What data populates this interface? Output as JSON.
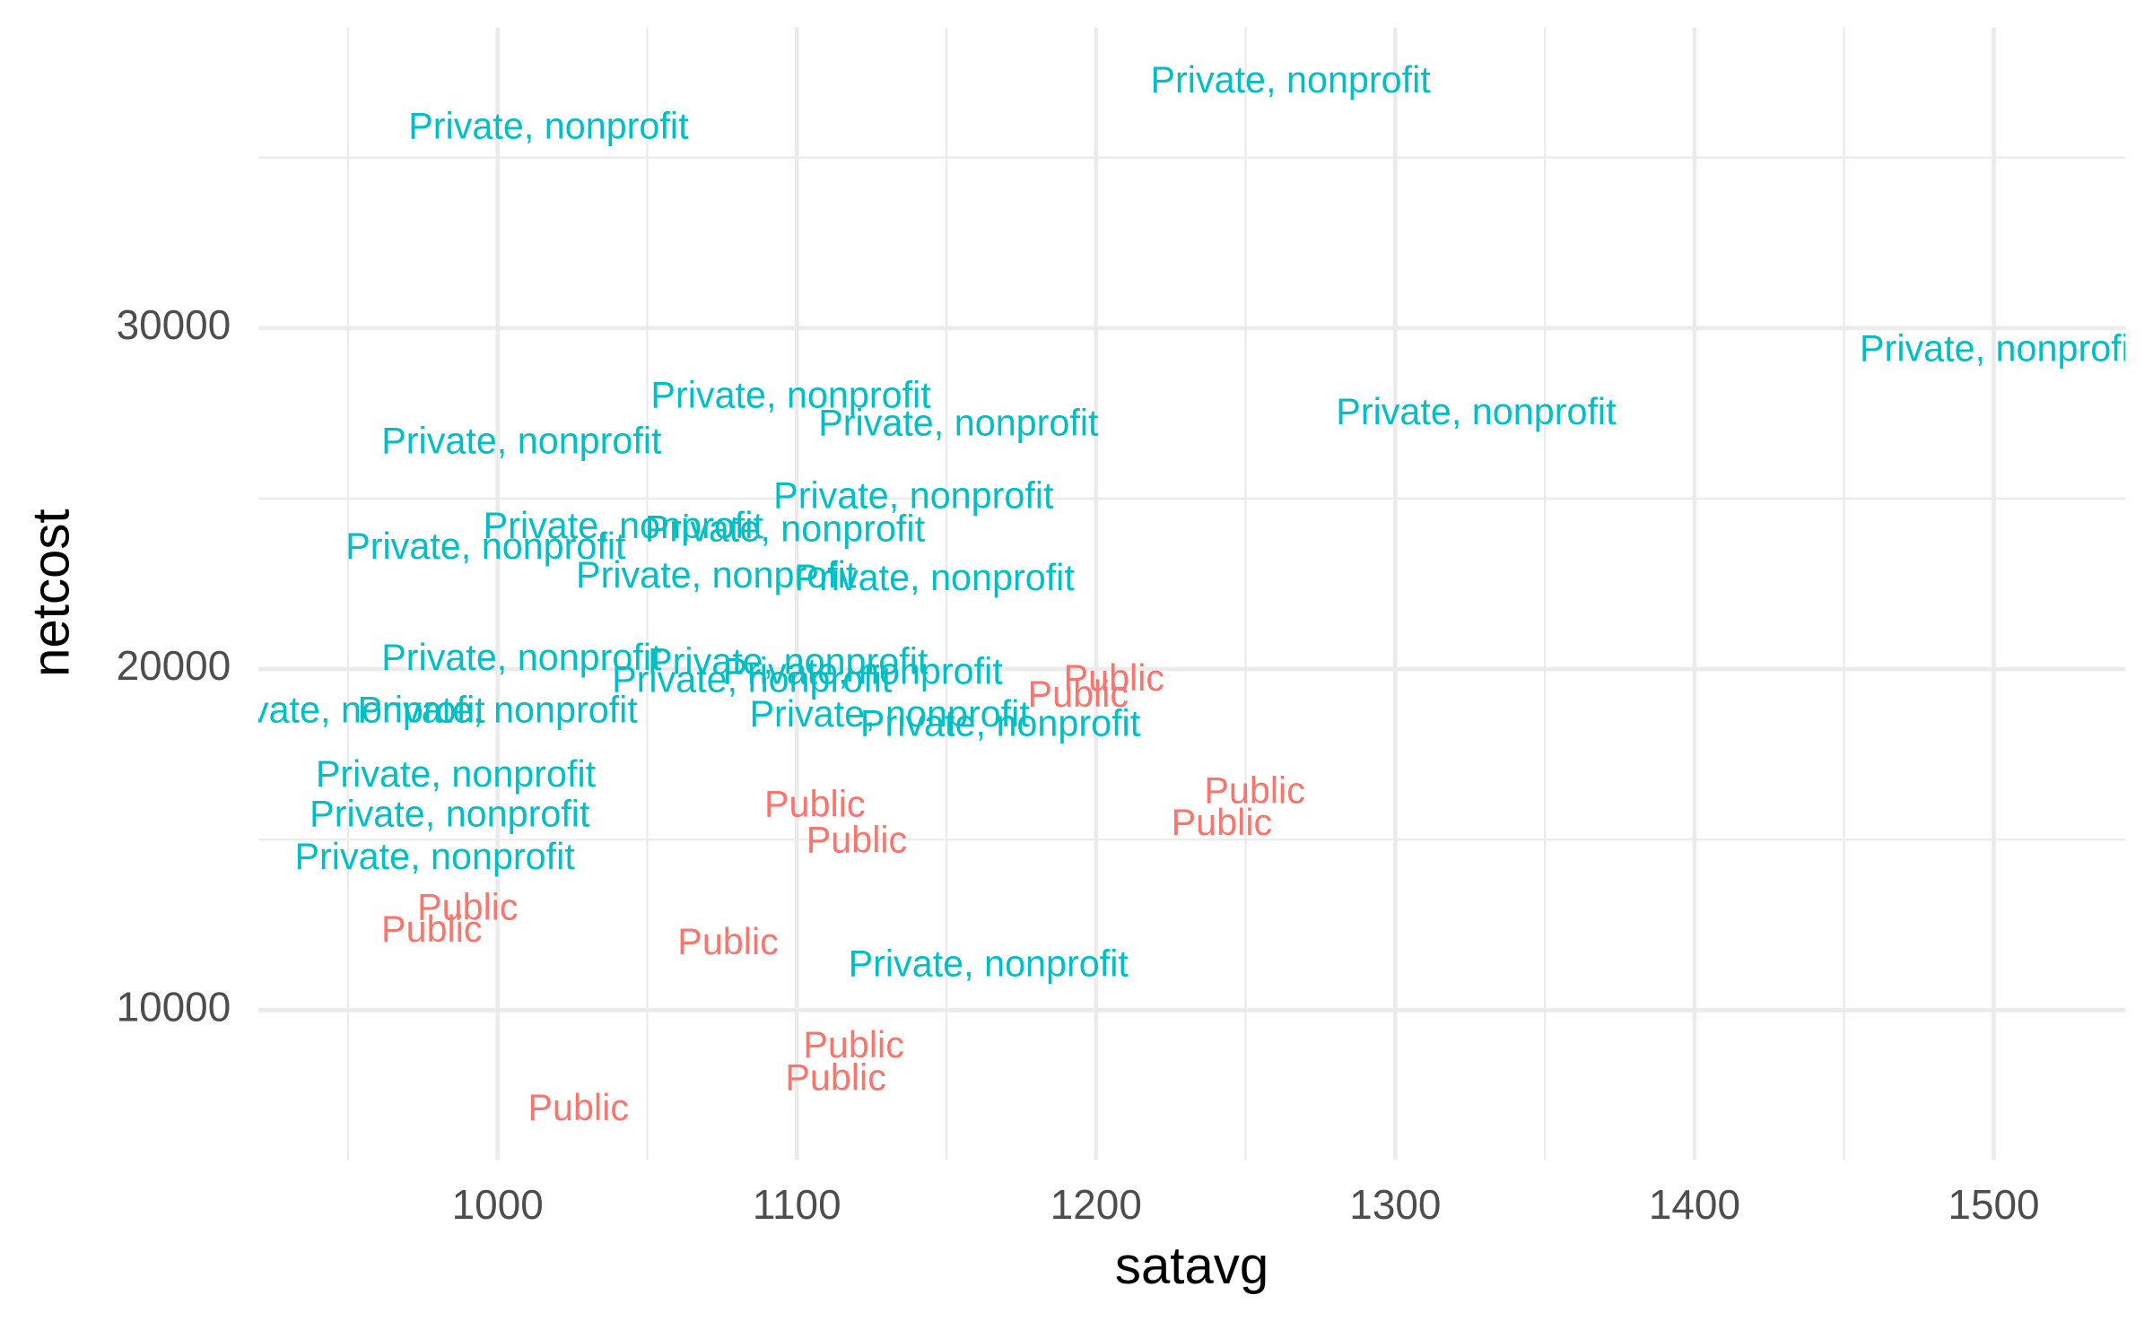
{
  "chart_data": {
    "type": "text-scatter",
    "x_label": "satavg",
    "y_label": "netcost",
    "xlim": [
      920,
      1544
    ],
    "ylim": [
      5614,
      38813
    ],
    "xticks": [
      1000,
      1100,
      1200,
      1300,
      1400,
      1500
    ],
    "yticks": [
      10000,
      20000,
      30000
    ],
    "grid": true,
    "series": [
      {
        "name": "Private, nonprofit",
        "color": "#00BFC4",
        "x": [
          1265,
          1017,
          1502,
          1327,
          1098,
          1154,
          1008,
          1139,
          1042,
          1096,
          996,
          1073,
          1146,
          1008,
          1097,
          1122,
          1085,
          949,
          1000,
          1131,
          1168,
          986,
          984,
          979,
          1164
        ],
        "values": [
          37200,
          35840,
          29320,
          27470,
          27950,
          27140,
          26620,
          25010,
          24130,
          24040,
          23520,
          22680,
          22600,
          20260,
          20140,
          19860,
          19620,
          18730,
          18730,
          18610,
          18330,
          16840,
          15680,
          14430,
          11290
        ]
      },
      {
        "name": "Public",
        "color": "#F8766D",
        "x": [
          1206,
          1194,
          1253,
          1242,
          1106,
          1120,
          990,
          978,
          1077,
          1119,
          1113,
          1027
        ],
        "values": [
          19660,
          19180,
          16360,
          15430,
          15960,
          14910,
          12940,
          12290,
          11930,
          8910,
          7950,
          7060
        ]
      }
    ]
  }
}
